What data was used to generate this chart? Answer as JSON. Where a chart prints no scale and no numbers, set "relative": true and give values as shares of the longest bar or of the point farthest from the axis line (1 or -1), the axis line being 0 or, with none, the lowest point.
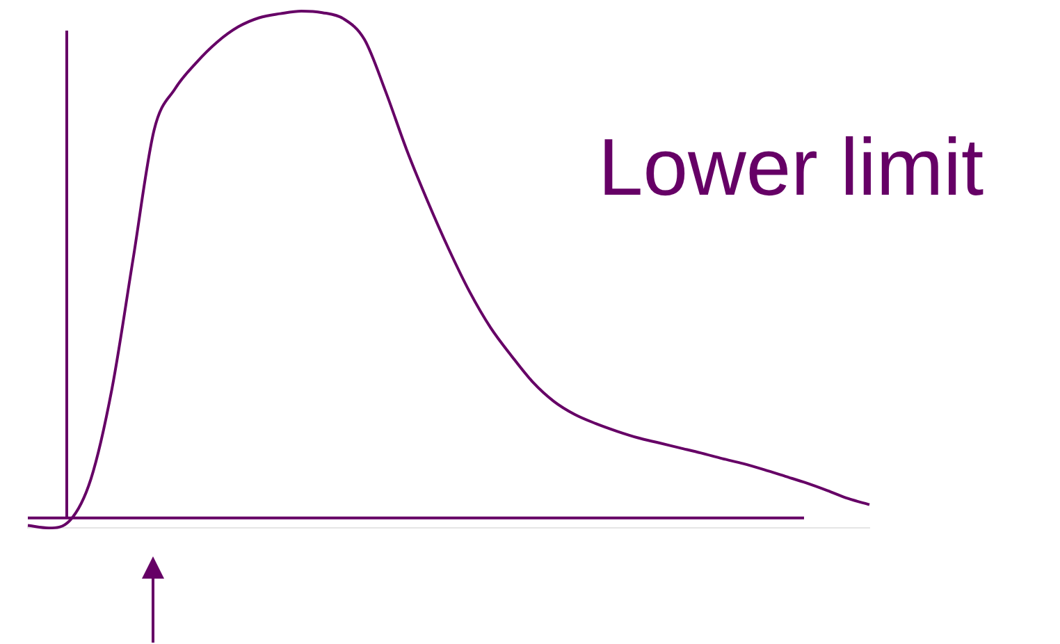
{
  "chart_data": {
    "type": "line",
    "title": "Lower limit",
    "relative": true,
    "marker": "none",
    "legend": false,
    "ref_lines": [
      {
        "axis": "y",
        "value": 0,
        "color": "#660066",
        "line_style": "solid"
      }
    ],
    "categories": [
      null,
      null,
      null,
      null,
      null,
      null,
      null,
      null,
      null,
      null,
      null,
      null,
      null,
      null,
      null,
      null,
      null,
      null,
      null,
      null,
      null,
      null,
      null,
      null,
      null,
      null,
      null,
      null,
      null,
      null,
      null,
      null,
      null,
      null,
      null,
      null,
      null,
      null,
      null,
      null,
      null
    ],
    "series": [
      {
        "color": "#660066",
        "values": [
          -0.015,
          -0.02,
          -0.005,
          0.077,
          0.255,
          0.51,
          0.765,
          0.847,
          0.898,
          0.939,
          0.969,
          0.987,
          0.995,
          1,
          0.997,
          0.985,
          0.944,
          0.842,
          0.727,
          0.625,
          0.531,
          0.446,
          0.375,
          0.319,
          0.268,
          0.23,
          0.204,
          0.186,
          0.171,
          0.158,
          0.148,
          0.138,
          0.128,
          0.117,
          0.107,
          0.095,
          0.082,
          0.069,
          0.054,
          0.038,
          0.026
        ]
      }
    ]
  }
}
